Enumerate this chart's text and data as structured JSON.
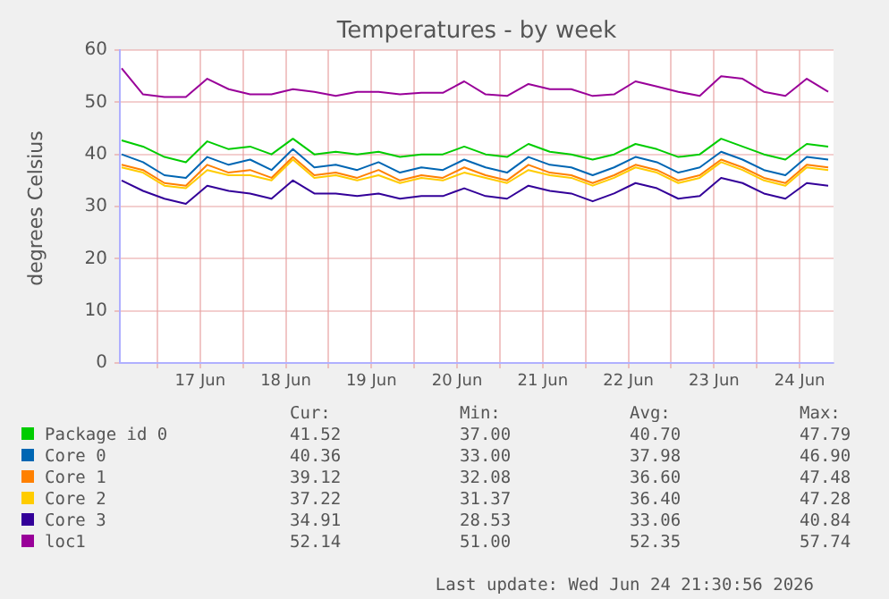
{
  "chart_data": {
    "type": "line",
    "title": "Temperatures - by week",
    "ylabel": "degrees Celsius",
    "x": [
      "2026-06-16T14:00",
      "2026-06-16T20:00",
      "2026-06-17T02:00",
      "2026-06-17T08:00",
      "2026-06-17T14:00",
      "2026-06-17T20:00",
      "2026-06-18T02:00",
      "2026-06-18T08:00",
      "2026-06-18T14:00",
      "2026-06-18T20:00",
      "2026-06-19T02:00",
      "2026-06-19T08:00",
      "2026-06-19T14:00",
      "2026-06-19T20:00",
      "2026-06-20T02:00",
      "2026-06-20T08:00",
      "2026-06-20T14:00",
      "2026-06-20T20:00",
      "2026-06-21T02:00",
      "2026-06-21T08:00",
      "2026-06-21T14:00",
      "2026-06-21T20:00",
      "2026-06-22T02:00",
      "2026-06-22T08:00",
      "2026-06-22T14:00",
      "2026-06-22T20:00",
      "2026-06-23T02:00",
      "2026-06-23T08:00",
      "2026-06-23T14:00",
      "2026-06-23T20:00",
      "2026-06-24T02:00",
      "2026-06-24T08:00",
      "2026-06-24T14:00",
      "2026-06-24T20:00"
    ],
    "series": [
      {
        "name": "Package id 0",
        "color": "#00cc00",
        "values": [
          42.7,
          41.5,
          39.5,
          38.5,
          42.5,
          41,
          41.5,
          40,
          43,
          40,
          40.5,
          40,
          40.5,
          39.5,
          40,
          40,
          41.5,
          40,
          39.5,
          42,
          40.5,
          40,
          39,
          40,
          42,
          41,
          39.5,
          40,
          43,
          41.5,
          40,
          39,
          42,
          41.5
        ]
      },
      {
        "name": "Core 0",
        "color": "#0066b3",
        "values": [
          40,
          38.5,
          36,
          35.5,
          39.5,
          38,
          39,
          37,
          41,
          37.5,
          38,
          37,
          38.5,
          36.5,
          37.5,
          37,
          39,
          37.5,
          36.5,
          39.5,
          38,
          37.5,
          36,
          37.5,
          39.5,
          38.5,
          36.5,
          37.5,
          40.5,
          39,
          37,
          36,
          39.5,
          39
        ]
      },
      {
        "name": "Core 1",
        "color": "#ff8000",
        "values": [
          38,
          37,
          34.5,
          34,
          38,
          36.5,
          37,
          35.5,
          39.5,
          36,
          36.5,
          35.5,
          37,
          35,
          36,
          35.5,
          37.5,
          36,
          35,
          38,
          36.5,
          36,
          34.5,
          36,
          38,
          37,
          35,
          36,
          39,
          37.5,
          35.5,
          34.5,
          38,
          37.5
        ]
      },
      {
        "name": "Core 2",
        "color": "#ffcc00",
        "values": [
          37.5,
          36.5,
          34,
          33.5,
          37,
          36,
          36,
          35,
          39,
          35.5,
          36,
          35,
          36,
          34.5,
          35.5,
          35,
          36.5,
          35.5,
          34.5,
          37,
          36,
          35.5,
          34,
          35.5,
          37.5,
          36.5,
          34.5,
          35.5,
          38.5,
          37,
          35,
          34,
          37.5,
          37
        ]
      },
      {
        "name": "Core 3",
        "color": "#330099",
        "values": [
          35,
          33,
          31.5,
          30.5,
          34,
          33,
          32.5,
          31.5,
          35,
          32.5,
          32.5,
          32,
          32.5,
          31.5,
          32,
          32,
          33.5,
          32,
          31.5,
          34,
          33,
          32.5,
          31,
          32.5,
          34.5,
          33.5,
          31.5,
          32,
          35.5,
          34.5,
          32.5,
          31.5,
          34.5,
          34
        ]
      },
      {
        "name": "loc1",
        "color": "#990099",
        "values": [
          56.5,
          51.5,
          51,
          51,
          54.5,
          52.5,
          51.5,
          51.5,
          52.5,
          52,
          51.2,
          52,
          52,
          51.5,
          51.8,
          51.8,
          54,
          51.5,
          51.2,
          53.5,
          52.5,
          52.5,
          51.2,
          51.5,
          54,
          53,
          52,
          51.2,
          55,
          54.5,
          52,
          51.2,
          54.5,
          52
        ]
      }
    ],
    "xlim": [
      "2026-06-16T13:30",
      "2026-06-24T21:30"
    ],
    "xticks": [
      {
        "value": "2026-06-17T00:00",
        "label": null
      },
      {
        "value": "2026-06-17T12:00",
        "label": "17 Jun"
      },
      {
        "value": "2026-06-18T00:00",
        "label": null
      },
      {
        "value": "2026-06-18T12:00",
        "label": "18 Jun"
      },
      {
        "value": "2026-06-19T00:00",
        "label": null
      },
      {
        "value": "2026-06-19T12:00",
        "label": "19 Jun"
      },
      {
        "value": "2026-06-20T00:00",
        "label": null
      },
      {
        "value": "2026-06-20T12:00",
        "label": "20 Jun"
      },
      {
        "value": "2026-06-21T00:00",
        "label": null
      },
      {
        "value": "2026-06-21T12:00",
        "label": "21 Jun"
      },
      {
        "value": "2026-06-22T00:00",
        "label": null
      },
      {
        "value": "2026-06-22T12:00",
        "label": "22 Jun"
      },
      {
        "value": "2026-06-23T00:00",
        "label": null
      },
      {
        "value": "2026-06-23T12:00",
        "label": "23 Jun"
      },
      {
        "value": "2026-06-24T00:00",
        "label": null
      },
      {
        "value": "2026-06-24T12:00",
        "label": "24 Jun"
      }
    ],
    "ylim": [
      0,
      60
    ],
    "yticks": [
      0,
      10,
      20,
      30,
      40,
      50,
      60
    ],
    "grid": true,
    "legend": "bottom",
    "annotations": [
      "Cur:",
      "Min:",
      "Avg:",
      "Max:",
      "41.52",
      "37.00",
      "40.70",
      "47.79",
      "40.36",
      "33.00",
      "37.98",
      "46.90",
      "39.12",
      "32.08",
      "36.60",
      "47.48",
      "37.22",
      "31.37",
      "36.40",
      "47.28",
      "34.91",
      "28.53",
      "33.06",
      "40.84",
      "52.14",
      "51.00",
      "52.35",
      "57.74",
      "Last update: Wed Jun 24 21:30:56 2026"
    ]
  }
}
